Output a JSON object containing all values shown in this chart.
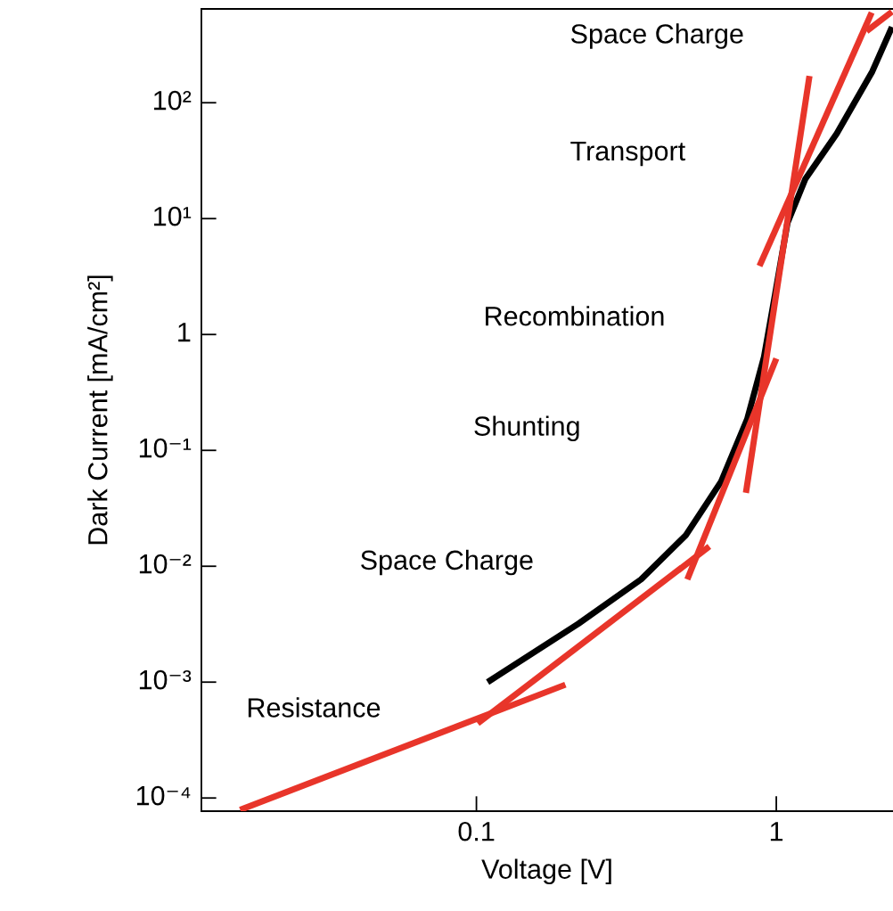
{
  "chart_data": {
    "type": "line",
    "xlabel": "Voltage [V]",
    "ylabel": "Dark Current [mA/cm²]",
    "log": "xy",
    "grid": false,
    "legend": false,
    "marker": "none",
    "line_style": "solid",
    "xlim": [
      0.0121,
      2.45
    ],
    "ylim": [
      7.7e-05,
      645
    ],
    "xticks": [
      0.1,
      1
    ],
    "yticks": [
      {
        "value": 0.0001,
        "label": "10⁻⁴"
      },
      {
        "value": 0.001,
        "label": "10⁻³"
      },
      {
        "value": 0.01,
        "label": "10⁻²"
      },
      {
        "value": 0.1,
        "label": "10⁻¹"
      },
      1,
      {
        "value": 10,
        "label": "10¹"
      },
      {
        "value": 100,
        "label": "10²"
      }
    ],
    "series": [
      {
        "color": "#000000",
        "x": [
          0.109,
          0.219,
          0.354,
          0.5,
          0.655,
          0.8,
          0.91,
          0.99,
          1.09,
          1.25,
          1.59,
          2.09,
          2.43
        ],
        "values": [
          0.001,
          0.0032,
          0.0077,
          0.0186,
          0.054,
          0.186,
          0.64,
          2.2,
          9.2,
          22,
          54,
          186,
          450
        ]
      },
      {
        "color": "#e8352a",
        "x": [
          0.0163,
          0.198
        ],
        "values": [
          7.9e-05,
          0.00095
        ]
      },
      {
        "color": "#e8352a",
        "x": [
          0.101,
          0.598
        ],
        "values": [
          0.00044,
          0.0148
        ]
      },
      {
        "color": "#e8352a",
        "x": [
          0.505,
          1.0
        ],
        "values": [
          0.0077,
          0.62
        ]
      },
      {
        "color": "#e8352a",
        "x": [
          0.792,
          1.29
        ],
        "values": [
          0.043,
          170
        ]
      },
      {
        "color": "#e8352a",
        "x": [
          0.879,
          2.08
        ],
        "values": [
          3.9,
          600
        ]
      },
      {
        "color": "#e8352a",
        "x": [
          2.0,
          2.43
        ],
        "values": [
          415,
          610
        ]
      }
    ],
    "annotations": [
      "Space Charge",
      "Transport",
      "Recombination",
      "Shunting",
      "Space Charge",
      "Resistance"
    ]
  }
}
